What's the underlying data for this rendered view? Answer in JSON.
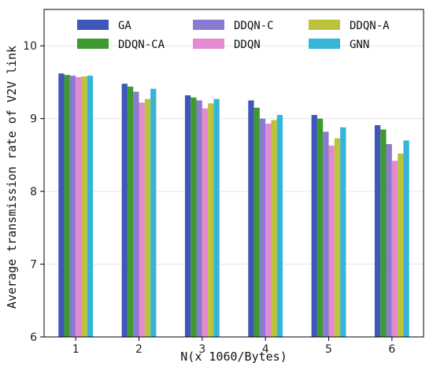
{
  "chart_data": {
    "type": "bar",
    "categories": [
      "1",
      "2",
      "3",
      "4",
      "5",
      "6"
    ],
    "series": [
      {
        "name": "GA",
        "color": "#3f57b8",
        "values": [
          9.62,
          9.48,
          9.32,
          9.25,
          9.05,
          8.91
        ]
      },
      {
        "name": "DDQN-CA",
        "color": "#3d9a2f",
        "values": [
          9.6,
          9.44,
          9.29,
          9.15,
          9.0,
          8.85
        ]
      },
      {
        "name": "DDQN-C",
        "color": "#8b7bd0",
        "values": [
          9.59,
          9.37,
          9.25,
          9.0,
          8.82,
          8.65
        ]
      },
      {
        "name": "DDQN",
        "color": "#e38ad0",
        "values": [
          9.57,
          9.22,
          9.14,
          8.93,
          8.63,
          8.42
        ]
      },
      {
        "name": "DDQN-A",
        "color": "#bcc23a",
        "values": [
          9.58,
          9.27,
          9.21,
          8.98,
          8.73,
          8.52
        ]
      },
      {
        "name": "GNN",
        "color": "#36b5d6",
        "values": [
          9.59,
          9.41,
          9.27,
          9.05,
          8.88,
          8.7
        ]
      }
    ],
    "xlabel": "N(x 1060/Bytes)",
    "ylabel": "Average transmission rate of V2V link",
    "ylim": [
      6,
      10.5
    ],
    "yticks": [
      6,
      7,
      8,
      9,
      10
    ],
    "grid": true,
    "legend_position": "top"
  }
}
